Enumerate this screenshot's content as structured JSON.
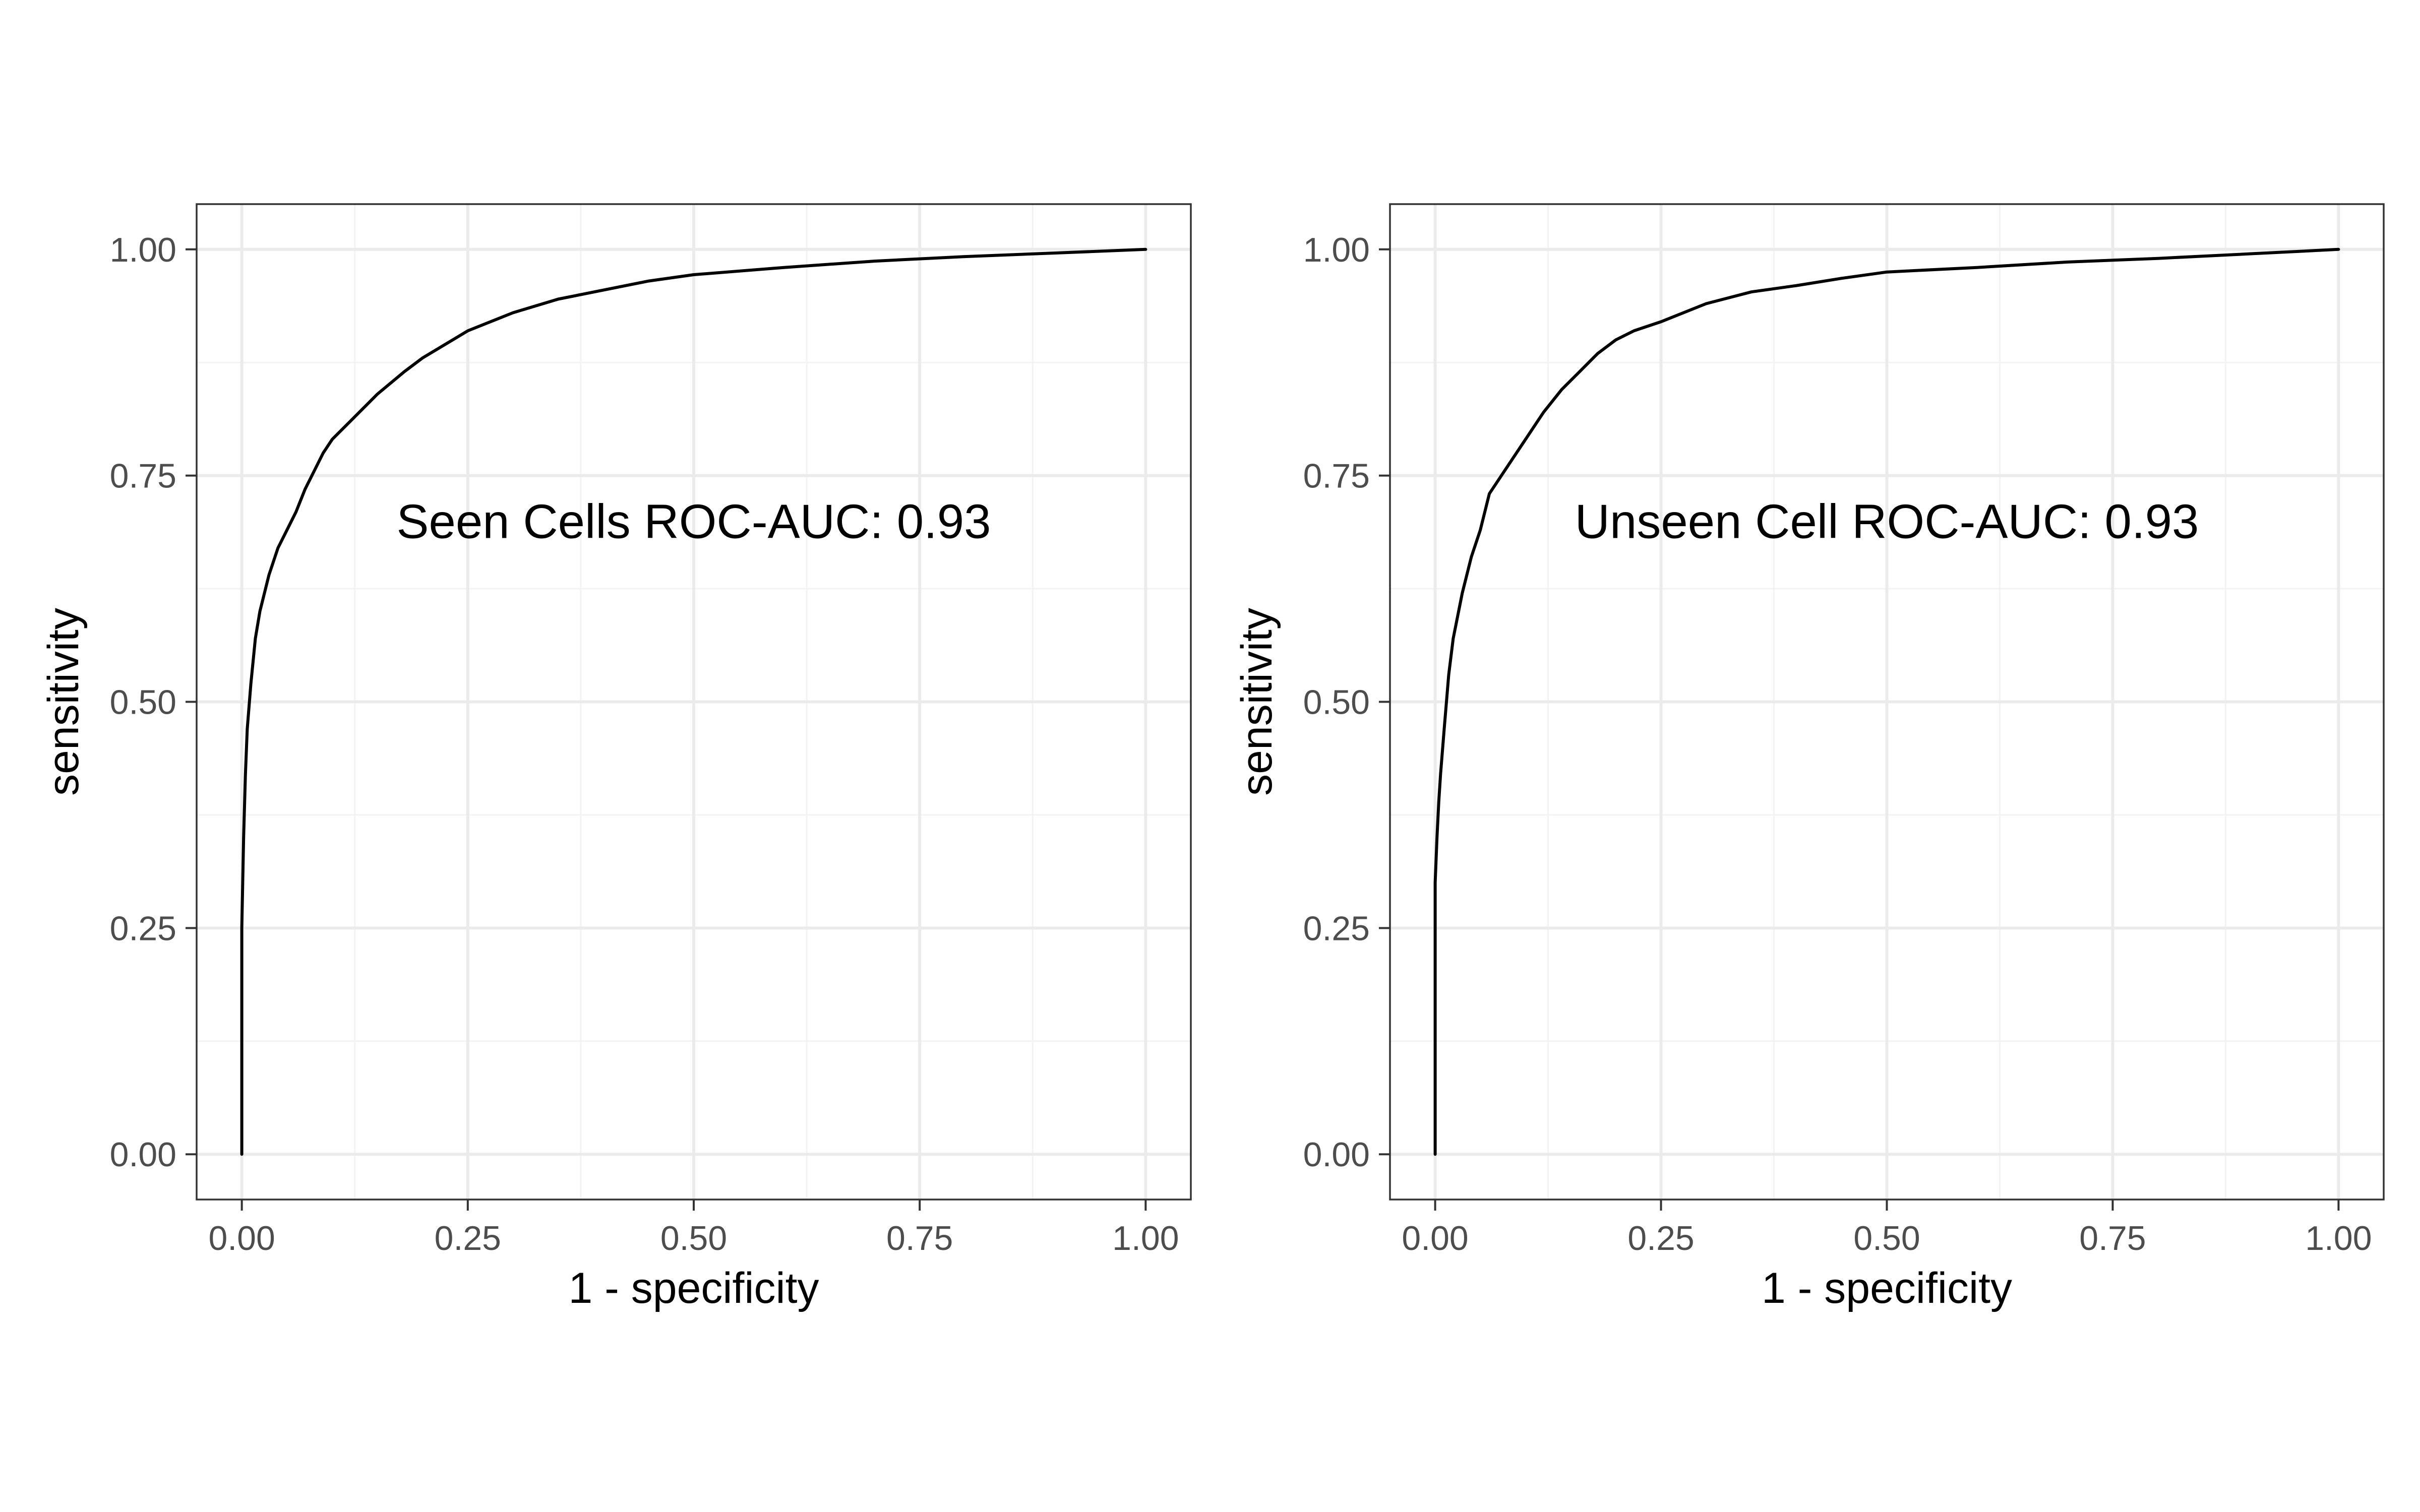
{
  "chart_data": [
    {
      "type": "line",
      "title": "",
      "xlabel": "1 - specificity",
      "ylabel": "sensitivity",
      "xlim": [
        -0.05,
        1.05
      ],
      "ylim": [
        -0.05,
        1.05
      ],
      "grid": true,
      "x_ticks": [
        "0.00",
        "0.25",
        "0.50",
        "0.75",
        "1.00"
      ],
      "y_ticks": [
        "0.00",
        "0.25",
        "0.50",
        "0.75",
        "1.00"
      ],
      "annotation": {
        "text": "Seen Cells ROC-AUC: 0.93",
        "x": 0.5,
        "y": 0.7
      },
      "series": [
        {
          "line_color": "#000000",
          "x": [
            0,
            0,
            0.002,
            0.004,
            0.006,
            0.01,
            0.015,
            0.02,
            0.03,
            0.04,
            0.05,
            0.06,
            0.07,
            0.08,
            0.09,
            0.1,
            0.12,
            0.14,
            0.15,
            0.18,
            0.2,
            0.25,
            0.3,
            0.35,
            0.4,
            0.45,
            0.5,
            0.6,
            0.7,
            0.8,
            0.9,
            1.0
          ],
          "y": [
            0,
            0.25,
            0.35,
            0.42,
            0.47,
            0.52,
            0.57,
            0.6,
            0.64,
            0.67,
            0.69,
            0.71,
            0.735,
            0.755,
            0.775,
            0.79,
            0.81,
            0.83,
            0.84,
            0.865,
            0.88,
            0.91,
            0.93,
            0.945,
            0.955,
            0.965,
            0.972,
            0.98,
            0.987,
            0.992,
            0.996,
            1.0
          ]
        }
      ]
    },
    {
      "type": "line",
      "title": "",
      "xlabel": "1 - specificity",
      "ylabel": "sensitivity",
      "xlim": [
        -0.05,
        1.05
      ],
      "ylim": [
        -0.05,
        1.05
      ],
      "grid": true,
      "x_ticks": [
        "0.00",
        "0.25",
        "0.50",
        "0.75",
        "1.00"
      ],
      "y_ticks": [
        "0.00",
        "0.25",
        "0.50",
        "0.75",
        "1.00"
      ],
      "annotation": {
        "text": "Unseen Cell ROC-AUC: 0.93",
        "x": 0.5,
        "y": 0.7
      },
      "series": [
        {
          "line_color": "#000000",
          "x": [
            0,
            0,
            0.002,
            0.004,
            0.006,
            0.01,
            0.015,
            0.02,
            0.03,
            0.04,
            0.05,
            0.06,
            0.07,
            0.08,
            0.1,
            0.12,
            0.14,
            0.16,
            0.18,
            0.2,
            0.22,
            0.25,
            0.3,
            0.35,
            0.4,
            0.45,
            0.5,
            0.6,
            0.7,
            0.8,
            0.9,
            1.0
          ],
          "y": [
            0,
            0.3,
            0.35,
            0.39,
            0.42,
            0.47,
            0.53,
            0.57,
            0.62,
            0.66,
            0.69,
            0.73,
            0.745,
            0.76,
            0.79,
            0.82,
            0.845,
            0.865,
            0.885,
            0.9,
            0.91,
            0.92,
            0.94,
            0.953,
            0.96,
            0.968,
            0.975,
            0.98,
            0.986,
            0.99,
            0.995,
            1.0
          ]
        }
      ]
    }
  ]
}
